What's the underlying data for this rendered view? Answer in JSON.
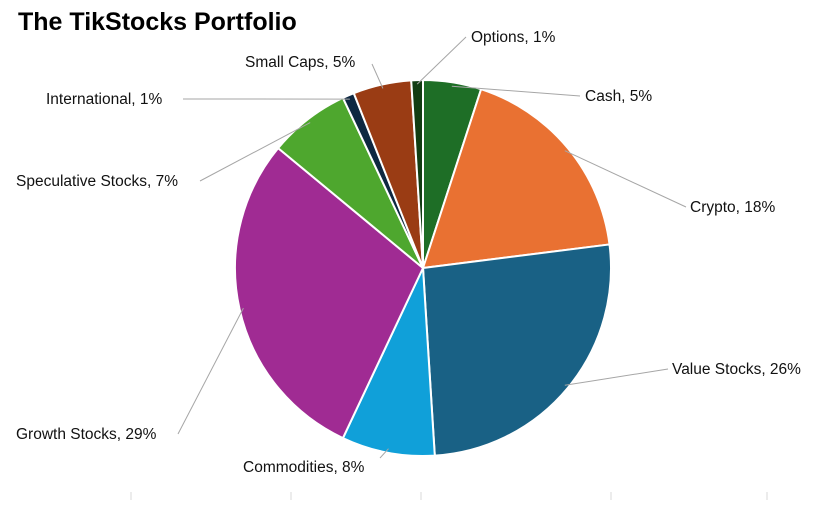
{
  "colors": {
    "slice_border": "#ffffff",
    "leader_line": "#a6a6a6",
    "tick_mark": "#d9d9d9"
  },
  "chart_data": {
    "type": "pie",
    "title": "The TikStocks Portfolio",
    "legend": "none",
    "start_angle_deg": 0,
    "direction": "clockwise",
    "slices": [
      {
        "label": "Cash",
        "value": 5,
        "display": "Cash, 5%",
        "color": "#1e6e26"
      },
      {
        "label": "Crypto",
        "value": 18,
        "display": "Crypto, 18%",
        "color": "#e97132"
      },
      {
        "label": "Value Stocks",
        "value": 26,
        "display": "Value Stocks, 26%",
        "color": "#196185"
      },
      {
        "label": "Commodities",
        "value": 8,
        "display": "Commodities, 8%",
        "color": "#10a0d9"
      },
      {
        "label": "Growth Stocks",
        "value": 29,
        "display": "Growth Stocks, 29%",
        "color": "#a02b93"
      },
      {
        "label": "Speculative Stocks",
        "value": 7,
        "display": "Speculative Stocks, 7%",
        "color": "#4ea72e"
      },
      {
        "label": "International",
        "value": 1,
        "display": "International, 1%",
        "color": "#0e2841"
      },
      {
        "label": "Small Caps",
        "value": 5,
        "display": "Small Caps, 5%",
        "color": "#9a3c14"
      },
      {
        "label": "Options",
        "value": 1,
        "display": "Options, 1%",
        "color": "#123d12"
      }
    ]
  }
}
